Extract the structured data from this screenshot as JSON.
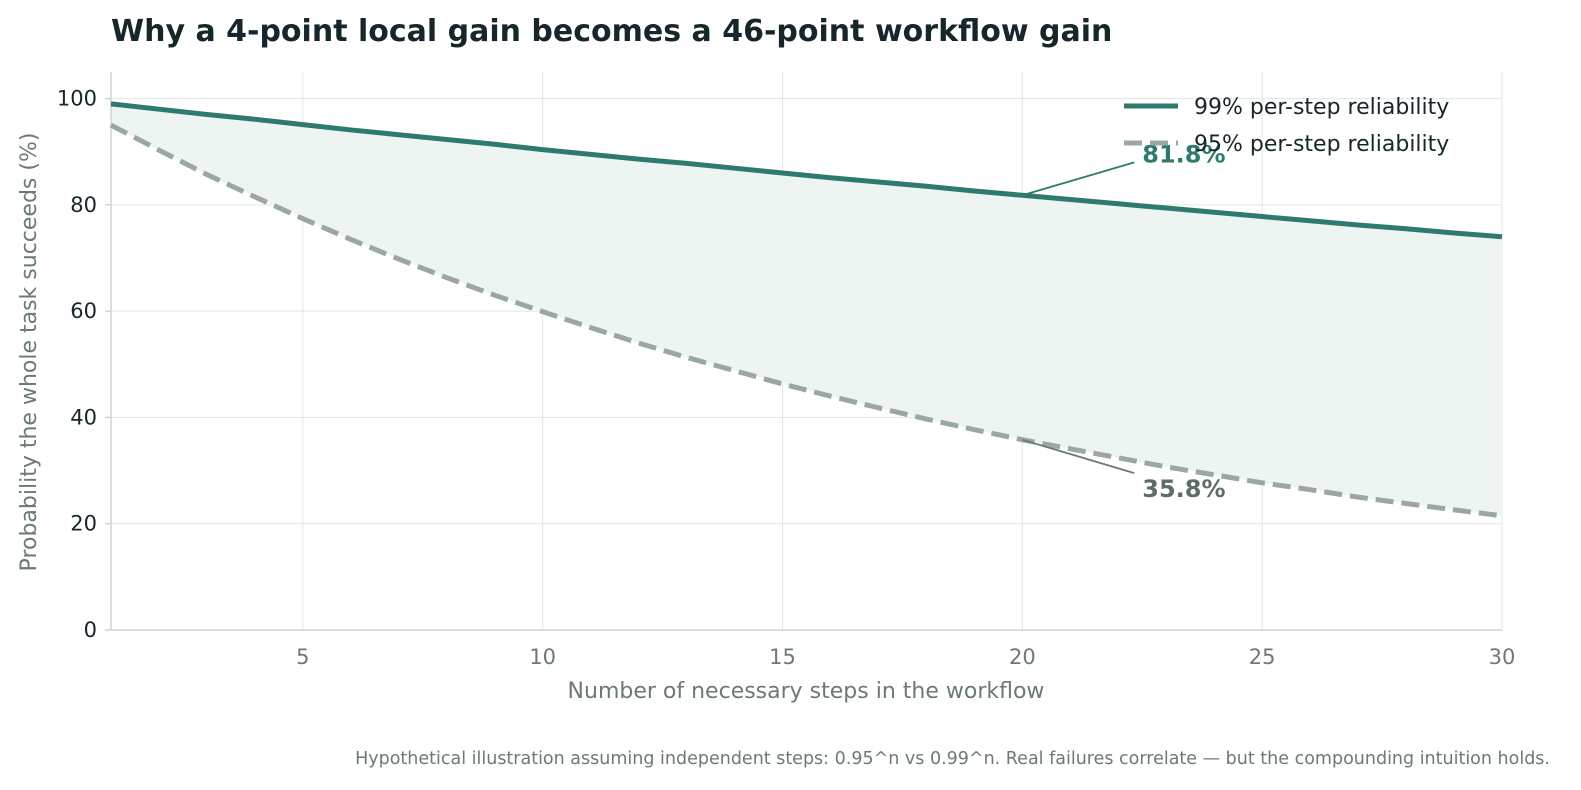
{
  "chart_data": {
    "type": "line",
    "title": "Why a 4-point local gain becomes a 46-point workflow gain",
    "xlabel": "Number of necessary steps in the workflow",
    "ylabel": "Probability the whole task succeeds (%)",
    "xlim": [
      1,
      30
    ],
    "ylim": [
      0,
      105
    ],
    "xticks": [
      5,
      10,
      15,
      20,
      25,
      30
    ],
    "yticks": [
      0,
      20,
      40,
      60,
      80,
      100
    ],
    "grid": true,
    "legend_position": "top-right",
    "x": [
      1,
      2,
      3,
      4,
      5,
      6,
      7,
      8,
      9,
      10,
      11,
      12,
      13,
      14,
      15,
      16,
      17,
      18,
      19,
      20,
      21,
      22,
      23,
      24,
      25,
      26,
      27,
      28,
      29,
      30
    ],
    "series": [
      {
        "name": "99% per-step reliability",
        "style": "solid",
        "color": "#2e7a6e",
        "values": [
          99.0,
          98.0,
          97.0,
          96.1,
          95.1,
          94.1,
          93.2,
          92.3,
          91.4,
          90.4,
          89.5,
          88.6,
          87.8,
          86.9,
          86.0,
          85.1,
          84.3,
          83.5,
          82.6,
          81.8,
          81.0,
          80.2,
          79.4,
          78.6,
          77.8,
          77.0,
          76.2,
          75.5,
          74.7,
          74.0
        ]
      },
      {
        "name": "95% per-step reliability",
        "style": "dashed",
        "color": "#9aa7a3",
        "values": [
          95.0,
          90.3,
          85.7,
          81.5,
          77.4,
          73.5,
          69.8,
          66.3,
          63.0,
          59.9,
          56.9,
          54.0,
          51.3,
          48.8,
          46.3,
          44.0,
          41.8,
          39.7,
          37.7,
          35.8,
          34.1,
          32.4,
          30.7,
          29.2,
          27.7,
          26.4,
          25.0,
          23.8,
          22.6,
          21.5
        ]
      }
    ],
    "fill_between": {
      "color": "#edf4f2"
    },
    "annotations": [
      {
        "text": "81.8%",
        "x": 20,
        "y": 81.8,
        "text_x": 22.5,
        "text_y": 88,
        "color": "#2e7a6e",
        "line_color": "#2e7a6e"
      },
      {
        "text": "35.8%",
        "x": 20,
        "y": 35.8,
        "text_x": 22.5,
        "text_y": 25,
        "color": "#5f6d6a",
        "line_color": "#6b7a77"
      }
    ]
  },
  "footnote": "Hypothetical illustration assuming independent steps: 0.95^n vs 0.99^n. Real failures correlate — but the compounding intuition holds."
}
